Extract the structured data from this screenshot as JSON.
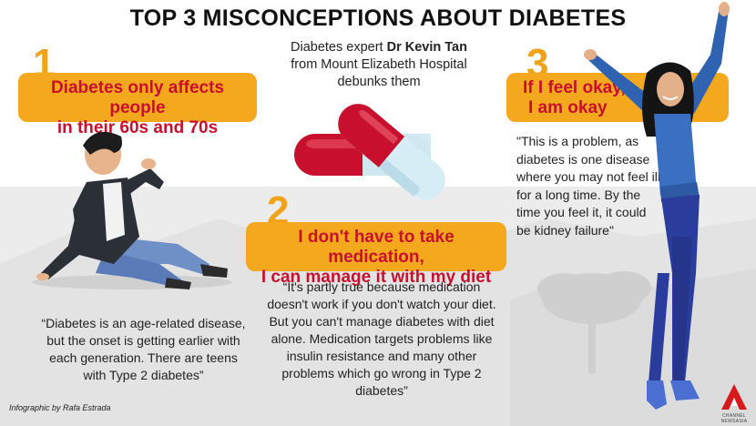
{
  "title": "TOP 3 MISCONCEPTIONS ABOUT DIABETES",
  "expert": {
    "line1_prefix": "Diabetes expert ",
    "name": "Dr Kevin Tan",
    "line2": "from Mount Elizabeth Hospital",
    "line3": "debunks them"
  },
  "misconceptions": [
    {
      "number": "1",
      "heading_line1": "Diabetes only affects people",
      "heading_line2": "in their 60s and 70s",
      "quote": "“Diabetes is an age-related disease, but the onset is getting earlier with each generation. There are teens with Type 2 diabetes”"
    },
    {
      "number": "2",
      "heading_line1": "I don't have to take medication,",
      "heading_line2": "I can manage it with my diet",
      "quote": "“It's partly true because medication doesn't work if you don't watch your diet. But you can't manage diabetes with diet alone. Medication targets problems like insulin resistance and many other problems which go wrong in Type 2 diabetes”"
    },
    {
      "number": "3",
      "heading_line1": "If I feel okay,",
      "heading_line2": "I am okay",
      "quote": "\"This is a problem, as diabetes is one disease where you may not feel ill for a long time. By the time you feel it, it could be kidney failure\""
    }
  ],
  "credit": "Infographic by Rafa Estrada",
  "logo_text": "Channel NewsAsia",
  "colors": {
    "banner": "#f4a81d",
    "banner_text": "#c8102e",
    "number": "#f0a318",
    "logo_red": "#d7191c"
  }
}
